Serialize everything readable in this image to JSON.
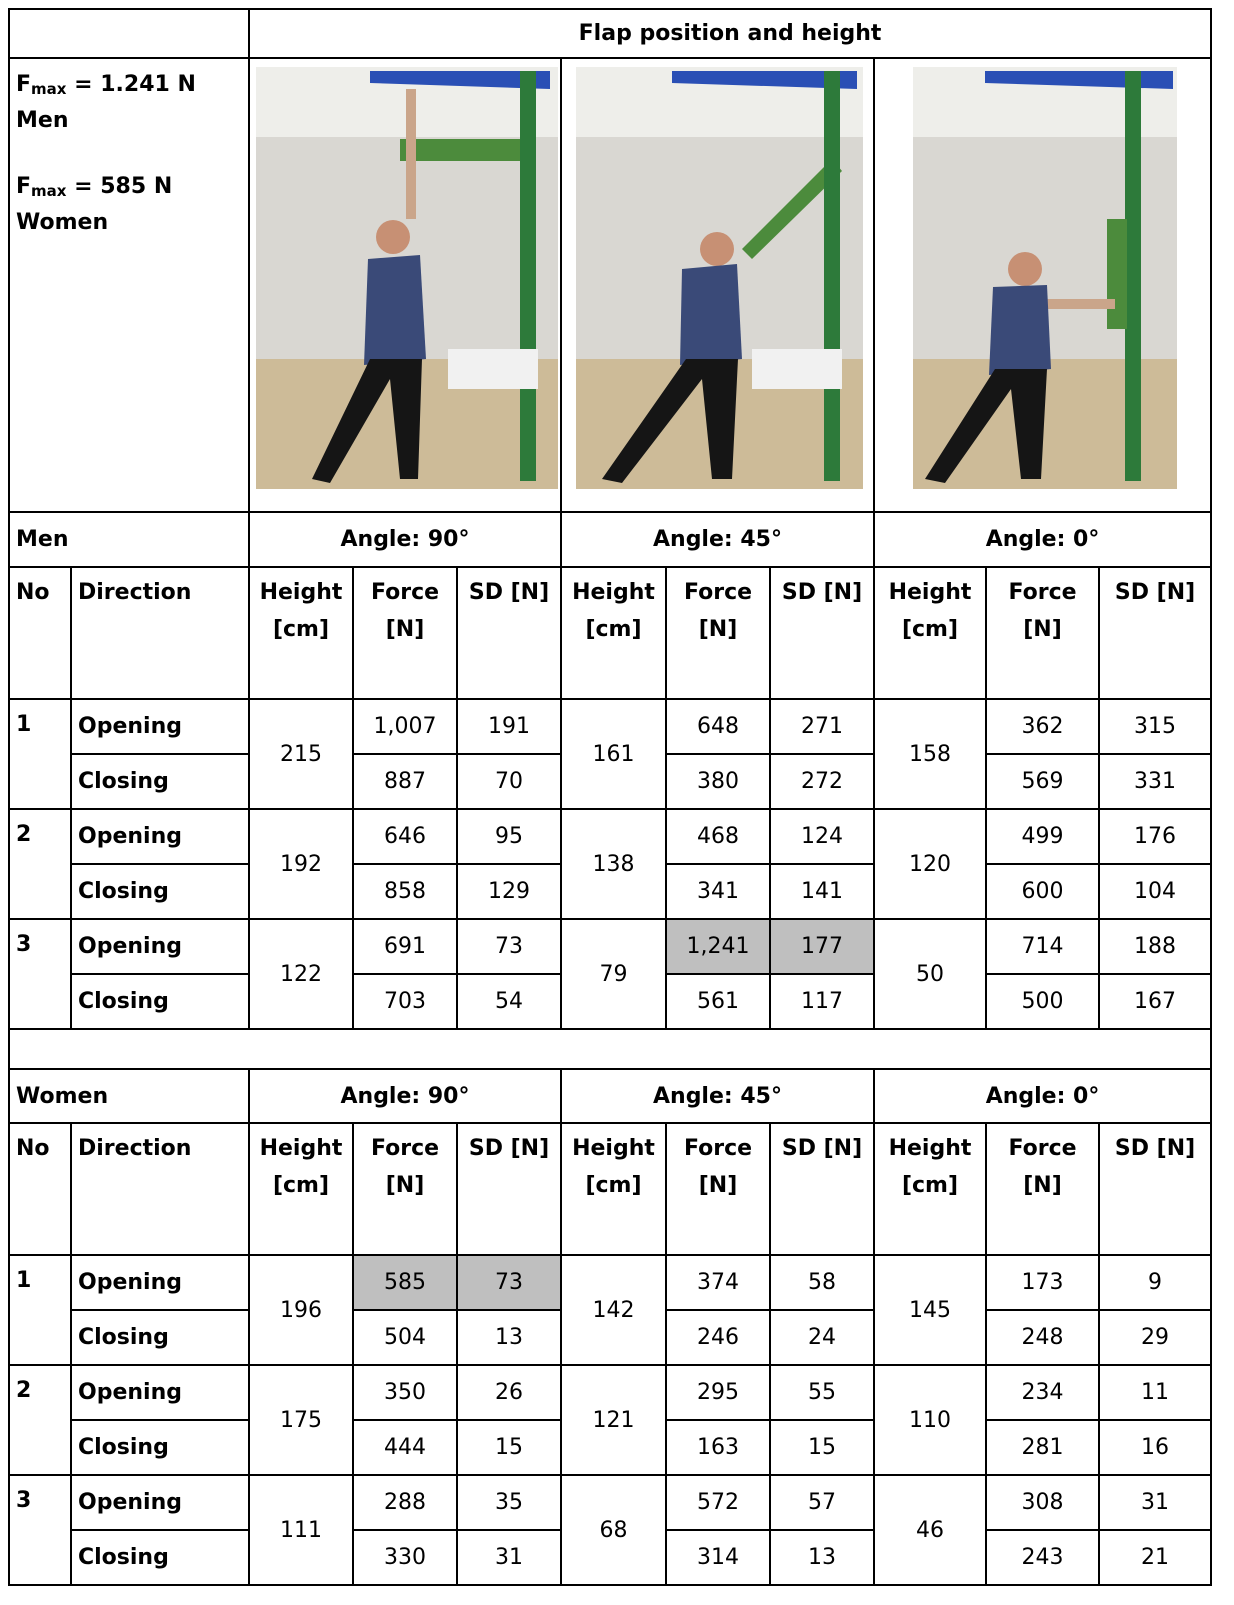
{
  "header": {
    "title": "Flap position and height"
  },
  "fmax": [
    {
      "symbol": "F",
      "subscript": "max",
      "value": "= 1.241 N",
      "group": "Men"
    },
    {
      "symbol": "F",
      "subscript": "max",
      "value": "= 585 N",
      "group": "Women"
    }
  ],
  "sections": [
    {
      "label": "Men",
      "angles": [
        "Angle: 90°",
        "Angle: 45°",
        "Angle: 0°"
      ],
      "columns": [
        "No",
        "Direction",
        "Height [cm]",
        "Force [N]",
        "SD [N]",
        "Height [cm]",
        "Force [N]",
        "SD [N]",
        "Height [cm]",
        "Force [N]",
        "SD [N]"
      ],
      "rows": [
        {
          "no": 1,
          "heights": [
            215,
            161,
            158
          ],
          "opening": {
            "direction": "Opening",
            "values": [
              {
                "force": "1,007",
                "sd": 191
              },
              {
                "force": 648,
                "sd": 271
              },
              {
                "force": 362,
                "sd": 315
              }
            ]
          },
          "closing": {
            "direction": "Closing",
            "values": [
              {
                "force": 887,
                "sd": 70
              },
              {
                "force": 380,
                "sd": 272
              },
              {
                "force": 569,
                "sd": 331
              }
            ]
          }
        },
        {
          "no": 2,
          "heights": [
            192,
            138,
            120
          ],
          "opening": {
            "direction": "Opening",
            "values": [
              {
                "force": 646,
                "sd": 95
              },
              {
                "force": 468,
                "sd": 124
              },
              {
                "force": 499,
                "sd": 176
              }
            ]
          },
          "closing": {
            "direction": "Closing",
            "values": [
              {
                "force": 858,
                "sd": 129
              },
              {
                "force": 341,
                "sd": 141
              },
              {
                "force": 600,
                "sd": 104
              }
            ]
          }
        },
        {
          "no": 3,
          "heights": [
            122,
            79,
            50
          ],
          "opening": {
            "direction": "Opening",
            "values": [
              {
                "force": 691,
                "sd": 73
              },
              {
                "force": "1,241",
                "sd": 177,
                "shaded": true
              },
              {
                "force": 714,
                "sd": 188
              }
            ]
          },
          "closing": {
            "direction": "Closing",
            "values": [
              {
                "force": 703,
                "sd": 54
              },
              {
                "force": 561,
                "sd": 117
              },
              {
                "force": 500,
                "sd": 167
              }
            ]
          }
        }
      ]
    },
    {
      "label": "Women",
      "angles": [
        "Angle: 90°",
        "Angle: 45°",
        "Angle: 0°"
      ],
      "columns": [
        "No",
        "Direction",
        "Height [cm]",
        "Force [N]",
        "SD [N]",
        "Height [cm]",
        "Force [N]",
        "SD [N]",
        "Height [cm]",
        "Force [N]",
        "SD [N]"
      ],
      "rows": [
        {
          "no": 1,
          "heights": [
            196,
            142,
            145
          ],
          "opening": {
            "direction": "Opening",
            "values": [
              {
                "force": 585,
                "sd": 73,
                "shaded": true
              },
              {
                "force": 374,
                "sd": 58
              },
              {
                "force": 173,
                "sd": 9
              }
            ]
          },
          "closing": {
            "direction": "Closing",
            "values": [
              {
                "force": 504,
                "sd": 13
              },
              {
                "force": 246,
                "sd": 24
              },
              {
                "force": 248,
                "sd": 29
              }
            ]
          }
        },
        {
          "no": 2,
          "heights": [
            175,
            121,
            110
          ],
          "opening": {
            "direction": "Opening",
            "values": [
              {
                "force": 350,
                "sd": 26
              },
              {
                "force": 295,
                "sd": 55
              },
              {
                "force": 234,
                "sd": 11
              }
            ]
          },
          "closing": {
            "direction": "Closing",
            "values": [
              {
                "force": 444,
                "sd": 15
              },
              {
                "force": 163,
                "sd": 15
              },
              {
                "force": 281,
                "sd": 16
              }
            ]
          }
        },
        {
          "no": 3,
          "heights": [
            111,
            68,
            46
          ],
          "opening": {
            "direction": "Opening",
            "values": [
              {
                "force": 288,
                "sd": 35
              },
              {
                "force": 572,
                "sd": 57
              },
              {
                "force": 308,
                "sd": 31
              }
            ]
          },
          "closing": {
            "direction": "Closing",
            "values": [
              {
                "force": 330,
                "sd": 31
              },
              {
                "force": 314,
                "sd": 13
              },
              {
                "force": 243,
                "sd": 21
              }
            ]
          }
        }
      ]
    }
  ]
}
